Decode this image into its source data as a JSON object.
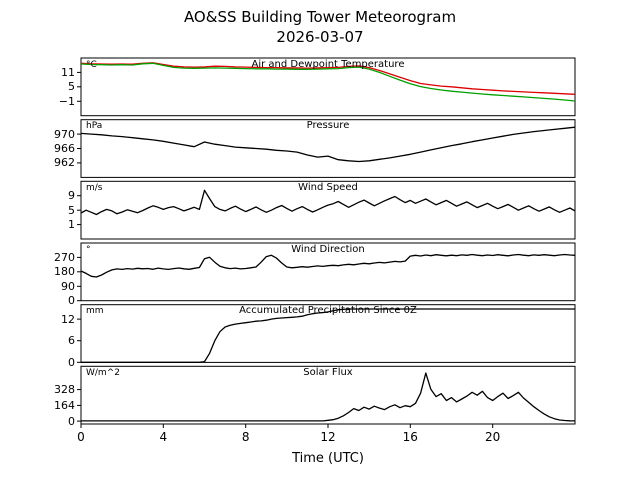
{
  "title": "AO&SS Building Tower Meteorogram",
  "subtitle": "2026-03-07",
  "xaxis": {
    "label": "Time (UTC)",
    "ticks": [
      0,
      4,
      8,
      12,
      16,
      20
    ],
    "xlim": [
      0,
      24
    ]
  },
  "chart_data": [
    {
      "id": "temperature",
      "type": "line",
      "title": "Air and Dewpoint Temperature",
      "unit": "°C",
      "ylim": [
        -7,
        17
      ],
      "yticks": [
        11,
        5,
        -1
      ],
      "series": [
        {
          "name": "air-temperature",
          "color": "#dd0000",
          "x_start": 0,
          "x_step": 0.5,
          "y": [
            14.8,
            14.6,
            14.5,
            14.4,
            14.5,
            14.4,
            14.8,
            15.0,
            14.3,
            13.6,
            13.3,
            13.2,
            13.3,
            13.6,
            13.5,
            13.3,
            13.2,
            13.1,
            13.0,
            13.0,
            12.9,
            12.9,
            12.8,
            12.9,
            13.0,
            13.1,
            13.5,
            13.7,
            13.0,
            11.8,
            10.4,
            9.0,
            7.6,
            6.4,
            5.8,
            5.3,
            5.0,
            4.6,
            4.2,
            3.9,
            3.6,
            3.3,
            3.1,
            2.9,
            2.7,
            2.5,
            2.3,
            2.1,
            1.9
          ]
        },
        {
          "name": "dewpoint-temperature",
          "color": "#00a000",
          "x_start": 0,
          "x_step": 0.5,
          "y": [
            14.5,
            14.3,
            14.2,
            14.1,
            14.2,
            14.1,
            14.6,
            14.8,
            13.9,
            13.1,
            12.8,
            12.7,
            12.8,
            12.9,
            12.8,
            12.7,
            12.6,
            12.5,
            12.5,
            12.4,
            12.4,
            12.3,
            12.3,
            12.4,
            12.5,
            12.6,
            13.0,
            13.2,
            12.4,
            11.0,
            9.4,
            7.8,
            6.3,
            5.1,
            4.3,
            3.7,
            3.2,
            2.8,
            2.4,
            2.0,
            1.7,
            1.4,
            1.1,
            0.8,
            0.5,
            0.2,
            -0.1,
            -0.5,
            -0.9
          ]
        }
      ]
    },
    {
      "id": "pressure",
      "type": "line",
      "title": "Pressure",
      "unit": "hPa",
      "ylim": [
        958,
        974
      ],
      "yticks": [
        970,
        966,
        962
      ],
      "series": [
        {
          "name": "pressure",
          "color": "#000000",
          "x_start": 0,
          "x_step": 0.5,
          "y": [
            970.2,
            970.0,
            969.8,
            969.5,
            969.3,
            969.0,
            968.7,
            968.4,
            968.0,
            967.5,
            967.0,
            966.5,
            967.8,
            967.2,
            966.8,
            966.4,
            966.2,
            966.0,
            965.8,
            965.5,
            965.3,
            965.0,
            964.2,
            963.6,
            963.9,
            962.9,
            962.6,
            962.4,
            962.6,
            963.0,
            963.4,
            963.9,
            964.4,
            965.0,
            965.6,
            966.2,
            966.8,
            967.3,
            967.9,
            968.4,
            968.9,
            969.4,
            969.9,
            970.3,
            970.7,
            971.0,
            971.3,
            971.6,
            971.9
          ]
        }
      ]
    },
    {
      "id": "wind-speed",
      "type": "line",
      "title": "Wind Speed",
      "unit": "m/s",
      "ylim": [
        -3,
        13
      ],
      "yticks": [
        9,
        5,
        1
      ],
      "series": [
        {
          "name": "wind-speed",
          "color": "#000000",
          "x_start": 0,
          "x_step": 0.25,
          "y": [
            4.2,
            5.0,
            4.4,
            3.8,
            4.6,
            5.2,
            4.8,
            4.0,
            4.5,
            5.1,
            4.7,
            4.3,
            4.9,
            5.6,
            6.2,
            5.8,
            5.2,
            5.7,
            6.0,
            5.4,
            4.8,
            5.3,
            5.8,
            5.2,
            10.5,
            8.2,
            6.0,
            5.2,
            4.8,
            5.5,
            6.1,
            5.3,
            4.6,
            5.2,
            5.9,
            5.1,
            4.4,
            5.0,
            5.7,
            6.3,
            5.5,
            4.7,
            5.4,
            6.0,
            5.2,
            4.5,
            5.1,
            5.8,
            6.4,
            6.8,
            7.4,
            6.6,
            5.8,
            6.5,
            7.2,
            7.8,
            7.0,
            6.2,
            6.9,
            7.6,
            8.2,
            8.8,
            7.9,
            7.1,
            7.7,
            6.9,
            7.5,
            8.1,
            7.3,
            6.5,
            7.1,
            7.7,
            6.9,
            6.1,
            6.7,
            7.3,
            6.5,
            5.7,
            6.3,
            6.9,
            6.1,
            5.4,
            6.0,
            6.6,
            5.8,
            5.0,
            5.6,
            6.2,
            5.4,
            4.7,
            5.3,
            5.9,
            5.1,
            4.4,
            5.0,
            5.6,
            4.8
          ]
        }
      ]
    },
    {
      "id": "wind-direction",
      "type": "line",
      "title": "Wind Direction",
      "unit": "°",
      "ylim": [
        0,
        360
      ],
      "yticks": [
        270,
        180,
        90,
        0
      ],
      "series": [
        {
          "name": "wind-direction",
          "color": "#000000",
          "x_start": 0,
          "x_step": 0.25,
          "y": [
            185,
            170,
            152,
            148,
            160,
            178,
            192,
            198,
            195,
            200,
            197,
            202,
            199,
            201,
            196,
            203,
            198,
            195,
            200,
            204,
            199,
            196,
            202,
            207,
            262,
            271,
            240,
            215,
            205,
            200,
            203,
            198,
            201,
            205,
            210,
            240,
            275,
            283,
            266,
            235,
            210,
            205,
            208,
            212,
            209,
            213,
            217,
            214,
            218,
            221,
            218,
            223,
            227,
            224,
            229,
            233,
            230,
            235,
            239,
            236,
            241,
            245,
            242,
            247,
            278,
            283,
            279,
            285,
            281,
            287,
            283,
            280,
            284,
            281,
            286,
            283,
            288,
            284,
            281,
            285,
            282,
            287,
            283,
            280,
            285,
            288,
            284,
            281,
            286,
            283,
            287,
            284,
            281,
            285,
            288,
            285,
            283
          ]
        }
      ]
    },
    {
      "id": "precipitation",
      "type": "line",
      "title": "Accumulated Precipitation Since 0Z",
      "unit": "mm",
      "ylim": [
        0,
        16
      ],
      "yticks": [
        12,
        6,
        0
      ],
      "series": [
        {
          "name": "accumulated-precipitation",
          "color": "#000000",
          "x_start": 0,
          "x_step": 0.25,
          "y": [
            0,
            0,
            0,
            0,
            0,
            0,
            0,
            0,
            0,
            0,
            0,
            0,
            0,
            0,
            0,
            0,
            0,
            0,
            0,
            0,
            0,
            0,
            0,
            0,
            0.2,
            2.5,
            6.0,
            8.5,
            9.8,
            10.3,
            10.6,
            10.8,
            11.0,
            11.2,
            11.4,
            11.5,
            11.7,
            12.0,
            12.2,
            12.3,
            12.4,
            12.5,
            12.6,
            12.8,
            13.2,
            13.5,
            13.7,
            13.8,
            14.0,
            14.3,
            14.6,
            14.7,
            14.8,
            14.8,
            14.8,
            14.8,
            14.8,
            14.8,
            14.8,
            14.8,
            14.8,
            14.8,
            14.8,
            14.8,
            14.8,
            14.8,
            14.8,
            14.8,
            14.8,
            14.8,
            14.8,
            14.8,
            14.8,
            14.8,
            14.8,
            14.8,
            14.8,
            14.8,
            14.8,
            14.8,
            14.8,
            14.8,
            14.8,
            14.8,
            14.8,
            14.8,
            14.8,
            14.8,
            14.8,
            14.8,
            14.8,
            14.8,
            14.8,
            14.8,
            14.8,
            14.8,
            14.8
          ]
        }
      ]
    },
    {
      "id": "solar-flux",
      "type": "line",
      "title": "Solar Flux",
      "unit": "W/m^2",
      "ylim": [
        -30,
        570
      ],
      "yticks": [
        328,
        164,
        0
      ],
      "series": [
        {
          "name": "solar-flux",
          "color": "#000000",
          "x_start": 0,
          "x_step": 0.25,
          "y": [
            2,
            2,
            2,
            2,
            2,
            2,
            2,
            2,
            2,
            2,
            2,
            2,
            2,
            2,
            2,
            2,
            2,
            2,
            2,
            2,
            2,
            2,
            2,
            2,
            2,
            2,
            2,
            2,
            2,
            2,
            2,
            2,
            2,
            2,
            2,
            2,
            2,
            2,
            2,
            2,
            2,
            2,
            2,
            2,
            2,
            2,
            2,
            2,
            8,
            15,
            30,
            55,
            90,
            130,
            110,
            145,
            125,
            155,
            135,
            120,
            150,
            170,
            140,
            160,
            150,
            185,
            290,
            500,
            330,
            255,
            285,
            215,
            245,
            200,
            230,
            260,
            300,
            270,
            310,
            245,
            215,
            255,
            290,
            235,
            265,
            300,
            240,
            195,
            150,
            110,
            75,
            45,
            25,
            12,
            6,
            3,
            2
          ]
        }
      ]
    }
  ]
}
